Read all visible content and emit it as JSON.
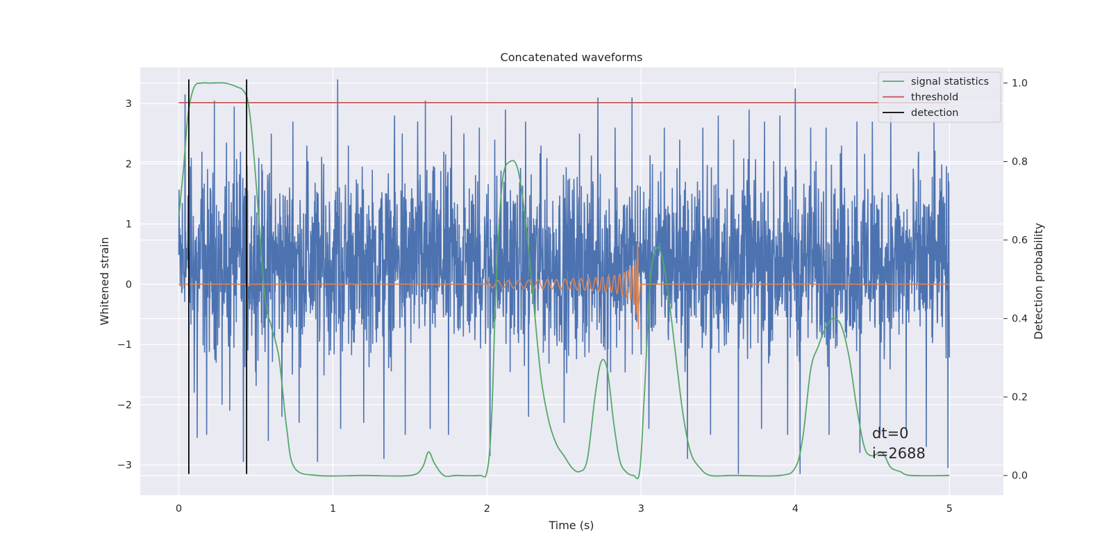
{
  "chart_data": {
    "type": "line",
    "title": "Concatenated waveforms",
    "xlabel": "Time (s)",
    "ylabel": "Whitened strain",
    "ylabel_right": "Detection probability",
    "xlim": [
      -0.25,
      5.35
    ],
    "ylim": [
      -3.5,
      3.6
    ],
    "ylim_right": [
      -0.05,
      1.04
    ],
    "x_ticks": [
      "0",
      "1",
      "2",
      "3",
      "4",
      "5"
    ],
    "x_tick_values": [
      0,
      1,
      2,
      3,
      4,
      5
    ],
    "y_ticks": [
      "−3",
      "−2",
      "−1",
      "0",
      "1",
      "2",
      "3"
    ],
    "y_tick_values": [
      -3,
      -2,
      -1,
      0,
      1,
      2,
      3
    ],
    "y_right_ticks": [
      "0.0",
      "0.2",
      "0.4",
      "0.6",
      "0.8",
      "1.0"
    ],
    "y_right_tick_values": [
      0.0,
      0.2,
      0.4,
      0.6,
      0.8,
      1.0
    ],
    "grid": true,
    "legend_placement": "top-right",
    "legend": [
      "signal statistics",
      "threshold",
      "detection"
    ],
    "colors": {
      "strain": "#4c72b0",
      "waveform": "#dd8452",
      "statistics": "#55a868",
      "threshold": "#c44e52",
      "detection": "#000000",
      "plot_background": "#eaeaf2",
      "grid": "#ffffff"
    },
    "series": [
      {
        "name": "signal statistics",
        "axis": "right",
        "x": [
          0.0,
          0.03,
          0.06,
          0.1,
          0.15,
          0.2,
          0.3,
          0.38,
          0.42,
          0.45,
          0.48,
          0.52,
          0.56,
          0.6,
          0.65,
          0.7,
          0.75,
          0.9,
          1.2,
          1.5,
          1.58,
          1.62,
          1.66,
          1.72,
          1.8,
          1.95,
          2.0,
          2.03,
          2.06,
          2.1,
          2.15,
          2.2,
          2.25,
          2.3,
          2.35,
          2.4,
          2.45,
          2.5,
          2.55,
          2.6,
          2.65,
          2.7,
          2.74,
          2.78,
          2.82,
          2.86,
          2.9,
          2.95,
          2.99,
          3.02,
          3.06,
          3.1,
          3.14,
          3.18,
          3.22,
          3.27,
          3.32,
          3.38,
          3.45,
          3.6,
          3.9,
          4.0,
          4.05,
          4.1,
          4.15,
          4.2,
          4.25,
          4.3,
          4.35,
          4.4,
          4.45,
          4.5,
          4.55,
          4.58,
          4.62,
          4.68,
          4.75,
          5.0
        ],
        "values": [
          0.66,
          0.78,
          0.92,
          0.99,
          1.0,
          1.0,
          1.0,
          0.99,
          0.98,
          0.95,
          0.85,
          0.65,
          0.45,
          0.38,
          0.3,
          0.12,
          0.02,
          0.0,
          0.0,
          0.0,
          0.02,
          0.06,
          0.03,
          0.0,
          0.0,
          0.0,
          0.01,
          0.15,
          0.5,
          0.75,
          0.8,
          0.78,
          0.65,
          0.45,
          0.25,
          0.14,
          0.08,
          0.05,
          0.02,
          0.01,
          0.04,
          0.2,
          0.29,
          0.27,
          0.14,
          0.04,
          0.01,
          0.0,
          0.01,
          0.2,
          0.5,
          0.58,
          0.55,
          0.45,
          0.32,
          0.16,
          0.06,
          0.02,
          0.0,
          0.0,
          0.0,
          0.02,
          0.1,
          0.27,
          0.33,
          0.38,
          0.4,
          0.38,
          0.3,
          0.17,
          0.07,
          0.05,
          0.06,
          0.05,
          0.02,
          0.01,
          0.0,
          0.0
        ]
      },
      {
        "name": "threshold",
        "axis": "right",
        "x": [
          0.0,
          5.0
        ],
        "values": [
          0.95,
          0.95
        ]
      },
      {
        "name": "detection",
        "axis": "left",
        "x": [
          0.065,
          0.44
        ],
        "ymin": -3.15,
        "ymax": 3.4
      },
      {
        "axis": "left",
        "kind": "noise",
        "x_range": [
          0.0,
          5.0
        ],
        "typical_range": [
          -1.8,
          2.3
        ],
        "peaks_x": [
          0.04,
          0.08,
          0.15,
          0.23,
          0.31,
          0.36,
          0.4,
          0.43,
          0.52,
          0.6,
          0.74,
          0.83,
          0.9,
          0.94,
          1.03,
          1.1,
          1.2,
          1.33,
          1.4,
          1.45,
          1.55,
          1.6,
          1.72,
          1.77,
          1.85,
          1.95,
          2.05,
          2.12,
          2.25,
          2.35,
          2.5,
          2.6,
          2.72,
          2.83,
          2.94,
          3.05,
          3.15,
          3.25,
          3.3,
          3.4,
          3.5,
          3.6,
          3.7,
          3.8,
          3.9,
          4.0,
          4.1,
          4.2,
          4.3,
          4.4,
          4.5,
          4.62,
          4.72,
          4.8,
          4.9,
          4.97
        ],
        "peaks_y": [
          3.15,
          2.1,
          2.2,
          3.05,
          2.35,
          2.95,
          2.2,
          1.6,
          2.1,
          2.5,
          2.7,
          2.3,
          2.9,
          2.0,
          3.4,
          2.3,
          2.6,
          2.9,
          2.8,
          2.5,
          2.7,
          3.05,
          2.2,
          2.8,
          2.5,
          2.6,
          2.4,
          2.9,
          2.7,
          2.3,
          2.4,
          2.5,
          3.1,
          2.6,
          3.1,
          2.3,
          2.6,
          2.4,
          2.2,
          2.6,
          2.8,
          2.4,
          2.9,
          2.7,
          2.8,
          3.25,
          2.6,
          2.6,
          2.3,
          2.7,
          2.7,
          2.8,
          2.4,
          2.2,
          2.7,
          1.35
        ],
        "troughs_x": [
          0.1,
          0.12,
          0.18,
          0.28,
          0.33,
          0.42,
          0.58,
          0.67,
          0.78,
          0.9,
          1.05,
          1.2,
          1.33,
          1.47,
          1.63,
          1.75,
          2.02,
          2.27,
          2.5,
          2.78,
          3.05,
          3.3,
          3.45,
          3.63,
          3.78,
          3.95,
          4.03,
          4.22,
          4.42,
          4.55,
          4.72,
          4.85,
          4.99
        ],
        "troughs_y": [
          -1.8,
          -2.55,
          -2.5,
          -2.0,
          -2.1,
          -2.95,
          -2.6,
          -2.2,
          -2.3,
          -2.95,
          -2.4,
          -2.3,
          -2.9,
          -2.5,
          -2.4,
          -2.5,
          -2.85,
          -2.2,
          -2.3,
          -2.1,
          -2.4,
          -2.9,
          -2.5,
          -3.15,
          -2.4,
          -2.5,
          -3.15,
          -2.5,
          -2.8,
          -2.5,
          -2.4,
          -2.7,
          -3.05
        ]
      },
      {
        "axis": "left",
        "kind": "chirp",
        "x_start": 2.0,
        "x_end": 2.985,
        "amplitude_start": 0.06,
        "amplitude_end": 0.75
      }
    ],
    "annotations": [
      "dt=0",
      "i=2688"
    ]
  }
}
